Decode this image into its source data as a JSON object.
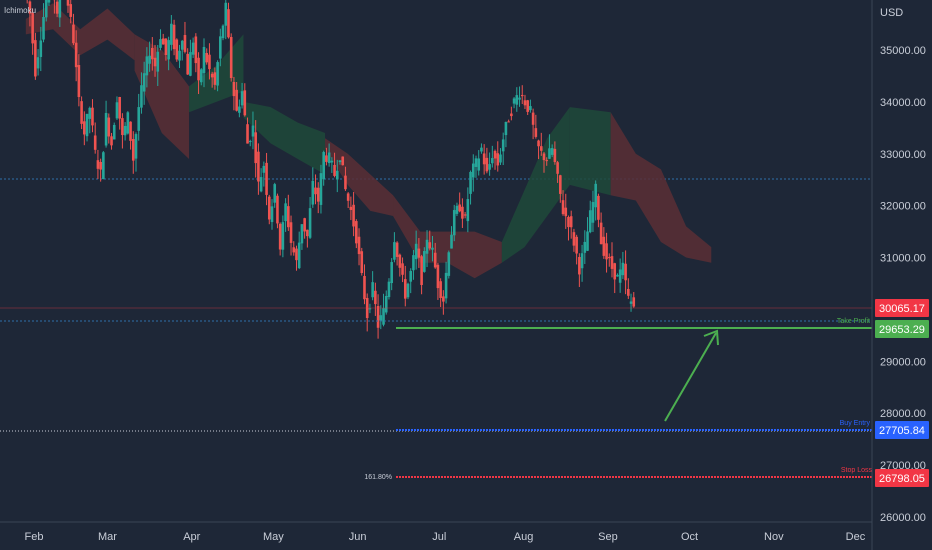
{
  "indicator_label": "Ichimoku",
  "currency": "USD",
  "colors": {
    "background": "#1e2737",
    "up": "#26a69a",
    "down": "#ef5350",
    "take_profit": "#4caf50",
    "buy_entry": "#2962ff",
    "stop_loss": "#f23645",
    "current_price": "#f23645",
    "dotted_grid": "#2f6fa8",
    "cloud_bull": "#1f4a3a",
    "cloud_bear": "#5a2f35"
  },
  "levels": {
    "current_price": {
      "value": 30065.17,
      "label": "30065.17"
    },
    "take_profit": {
      "value": 29653.29,
      "label": "29653.29",
      "name": "Take Profit"
    },
    "buy_entry": {
      "value": 27705.84,
      "label": "27705.84",
      "name": "Buy Entry"
    },
    "stop_loss": {
      "value": 26798.05,
      "label": "26798.05",
      "name": "Stop Loss",
      "fib": "161.80%"
    },
    "reference_line": {
      "value": 32550
    }
  },
  "chart_data": {
    "type": "candlestick",
    "title": "",
    "xlabel": "",
    "ylabel": "USD",
    "ylim": [
      25850,
      36950
    ],
    "grid": false,
    "y_ticks": [
      {
        "value": 35000,
        "label": "35000.00"
      },
      {
        "value": 34000,
        "label": "34000.00"
      },
      {
        "value": 33000,
        "label": "33000.00"
      },
      {
        "value": 32000,
        "label": "32000.00"
      },
      {
        "value": 31000,
        "label": "31000.00"
      },
      {
        "value": 29000,
        "label": "29000.00"
      },
      {
        "value": 28000,
        "label": "28000.00"
      },
      {
        "value": 27000,
        "label": "27000.00"
      },
      {
        "value": 26000,
        "label": "26000.00"
      }
    ],
    "x_ticks": [
      "Feb",
      "Mar",
      "Apr",
      "May",
      "Jun",
      "Jul",
      "Aug",
      "Sep",
      "Oct",
      "Nov",
      "Dec"
    ],
    "x_range_days": [
      0,
      280
    ],
    "x_tick_days": [
      3,
      30,
      61,
      91,
      122,
      152,
      183,
      214,
      244,
      275,
      305
    ],
    "price_path": [
      [
        0,
        36200
      ],
      [
        2,
        35700
      ],
      [
        4,
        34600
      ],
      [
        6,
        35300
      ],
      [
        8,
        36000
      ],
      [
        10,
        36400
      ],
      [
        12,
        35600
      ],
      [
        14,
        36750
      ],
      [
        16,
        35900
      ],
      [
        18,
        35200
      ],
      [
        20,
        34000
      ],
      [
        22,
        33400
      ],
      [
        24,
        33900
      ],
      [
        26,
        33000
      ],
      [
        28,
        32600
      ],
      [
        30,
        33700
      ],
      [
        32,
        33200
      ],
      [
        34,
        34100
      ],
      [
        36,
        33300
      ],
      [
        38,
        33700
      ],
      [
        40,
        32900
      ],
      [
        42,
        33900
      ],
      [
        44,
        34500
      ],
      [
        46,
        35000
      ],
      [
        48,
        34700
      ],
      [
        50,
        35300
      ],
      [
        52,
        34900
      ],
      [
        54,
        35400
      ],
      [
        56,
        34800
      ],
      [
        58,
        35300
      ],
      [
        60,
        34600
      ],
      [
        62,
        35200
      ],
      [
        64,
        34300
      ],
      [
        66,
        35000
      ],
      [
        68,
        34600
      ],
      [
        70,
        34300
      ],
      [
        72,
        35200
      ],
      [
        74,
        35800
      ],
      [
        76,
        34500
      ],
      [
        78,
        33800
      ],
      [
        80,
        34200
      ],
      [
        82,
        33200
      ],
      [
        84,
        33500
      ],
      [
        86,
        32400
      ],
      [
        88,
        32800
      ],
      [
        90,
        31800
      ],
      [
        92,
        32300
      ],
      [
        94,
        31200
      ],
      [
        96,
        32000
      ],
      [
        98,
        31300
      ],
      [
        100,
        30900
      ],
      [
        102,
        31700
      ],
      [
        104,
        31400
      ],
      [
        106,
        32400
      ],
      [
        108,
        32100
      ],
      [
        110,
        33000
      ],
      [
        112,
        32900
      ],
      [
        114,
        32600
      ],
      [
        116,
        33000
      ],
      [
        118,
        32300
      ],
      [
        120,
        31900
      ],
      [
        122,
        31400
      ],
      [
        124,
        30600
      ],
      [
        126,
        29900
      ],
      [
        128,
        30400
      ],
      [
        130,
        29700
      ],
      [
        132,
        29950
      ],
      [
        134,
        30600
      ],
      [
        136,
        31400
      ],
      [
        138,
        30800
      ],
      [
        140,
        30300
      ],
      [
        142,
        30700
      ],
      [
        144,
        31200
      ],
      [
        146,
        30600
      ],
      [
        148,
        31400
      ],
      [
        150,
        31100
      ],
      [
        152,
        30500
      ],
      [
        154,
        30200
      ],
      [
        156,
        31200
      ],
      [
        158,
        31800
      ],
      [
        160,
        32000
      ],
      [
        162,
        31700
      ],
      [
        164,
        32600
      ],
      [
        166,
        32800
      ],
      [
        168,
        33100
      ],
      [
        170,
        32600
      ],
      [
        172,
        33000
      ],
      [
        174,
        32800
      ],
      [
        176,
        33300
      ],
      [
        178,
        33700
      ],
      [
        180,
        34000
      ],
      [
        182,
        34200
      ],
      [
        184,
        34000
      ],
      [
        186,
        33800
      ],
      [
        188,
        33200
      ],
      [
        190,
        33000
      ],
      [
        192,
        32900
      ],
      [
        194,
        33100
      ],
      [
        196,
        32500
      ],
      [
        198,
        31900
      ],
      [
        200,
        31700
      ],
      [
        202,
        31300
      ],
      [
        204,
        30800
      ],
      [
        206,
        31200
      ],
      [
        208,
        31800
      ],
      [
        210,
        32300
      ],
      [
        212,
        31300
      ],
      [
        214,
        31000
      ],
      [
        216,
        30800
      ],
      [
        218,
        30600
      ],
      [
        220,
        30800
      ],
      [
        222,
        30200
      ],
      [
        224,
        30065
      ]
    ],
    "cloud_segments": [
      {
        "from": 0,
        "to": 40,
        "upper": [
          35600,
          35900,
          35400,
          35800,
          35300
        ],
        "lower": [
          35300,
          35400,
          34900,
          35200,
          34800
        ],
        "bias": "bear"
      },
      {
        "from": 40,
        "to": 60,
        "upper": [
          35300,
          35000,
          34300
        ],
        "lower": [
          34600,
          33400,
          32900
        ],
        "bias": "bear"
      },
      {
        "from": 60,
        "to": 80,
        "upper": [
          34300,
          34700,
          35300
        ],
        "lower": [
          33800,
          34000,
          34200
        ],
        "bias": "bull"
      },
      {
        "from": 80,
        "to": 110,
        "upper": [
          34000,
          33900,
          33600,
          33400
        ],
        "lower": [
          33700,
          33200,
          32900,
          32600
        ],
        "bias": "bull"
      },
      {
        "from": 110,
        "to": 135,
        "upper": [
          33300,
          33000,
          32600,
          32200
        ],
        "lower": [
          33100,
          32400,
          31900,
          31800
        ],
        "bias": "bear"
      },
      {
        "from": 135,
        "to": 175,
        "upper": [
          32200,
          31500,
          31500,
          31500,
          31300
        ],
        "lower": [
          31800,
          30900,
          30900,
          30600,
          30900
        ],
        "bias": "bear"
      },
      {
        "from": 175,
        "to": 200,
        "upper": [
          31300,
          32300,
          33300,
          33900
        ],
        "lower": [
          30900,
          31200,
          31800,
          32400
        ],
        "bias": "bull"
      },
      {
        "from": 200,
        "to": 215,
        "upper": [
          33900,
          33800
        ],
        "lower": [
          32400,
          32200
        ],
        "bias": "bull"
      },
      {
        "from": 215,
        "to": 252,
        "upper": [
          33800,
          33000,
          32700,
          31600,
          31200
        ],
        "lower": [
          32200,
          32100,
          31300,
          31000,
          30900
        ],
        "bias": "bear"
      }
    ]
  }
}
